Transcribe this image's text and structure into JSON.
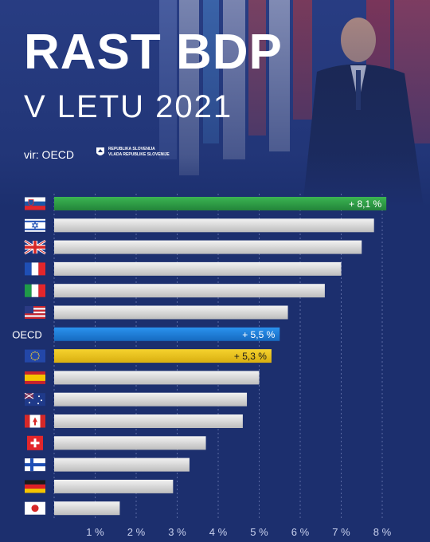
{
  "header": {
    "title": "RAST BDP",
    "subtitle": "V LETU 2021",
    "source": "vir: OECD",
    "gov_line1": "REPUBLIKA SLOVENIJA",
    "gov_line2": "VLADA REPUBLIKE SLOVENIJE"
  },
  "colors": {
    "background": "#1c2f6e",
    "highlight_slovenia": "#2e9a46",
    "highlight_oecd": "#1e7fd8",
    "highlight_eu": "#e8c21c",
    "bar_default": "#d4d4d4"
  },
  "chart_data": {
    "type": "bar",
    "orientation": "horizontal",
    "categories": [
      "Slovenia",
      "Israel",
      "United Kingdom",
      "France",
      "Italy",
      "United States",
      "OECD",
      "EU",
      "Spain",
      "Australia",
      "Canada",
      "Switzerland",
      "Finland",
      "Germany",
      "Japan"
    ],
    "row_labels": [
      "flag-si",
      "flag-il",
      "flag-gb",
      "flag-fr",
      "flag-it",
      "flag-us",
      "OECD",
      "flag-eu",
      "flag-es",
      "flag-au",
      "flag-ca",
      "flag-ch",
      "flag-fi",
      "flag-de",
      "flag-jp"
    ],
    "values": [
      8.1,
      7.8,
      7.5,
      7.0,
      6.6,
      5.7,
      5.5,
      5.3,
      5.0,
      4.7,
      4.6,
      3.7,
      3.3,
      2.9,
      1.6
    ],
    "data_labels": [
      "+ 8,1 %",
      "",
      "",
      "",
      "",
      "",
      "+ 5,5 %",
      "+ 5,3 %",
      "",
      "",
      "",
      "",
      "",
      "",
      ""
    ],
    "xlim": [
      0,
      8
    ],
    "xticks": [
      "1 %",
      "2 %",
      "3 %",
      "4 %",
      "5 %",
      "6 %",
      "7 %",
      "8 %"
    ],
    "grid": true,
    "xlabel": "",
    "ylabel": ""
  }
}
